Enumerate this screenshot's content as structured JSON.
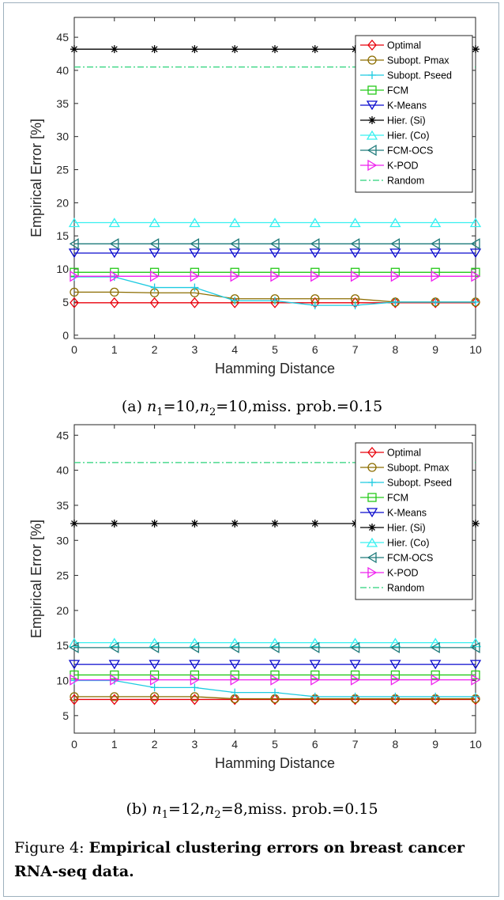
{
  "chart_data": [
    {
      "type": "line",
      "xlabel": "Hamming Distance",
      "ylabel": "Empirical Error [%]",
      "xlim": [
        0,
        10
      ],
      "ylim": [
        -0.5,
        48
      ],
      "yticks": [
        0,
        5,
        10,
        15,
        20,
        25,
        30,
        35,
        40,
        45
      ],
      "xticks": [
        0,
        1,
        2,
        3,
        4,
        5,
        6,
        7,
        8,
        9,
        10
      ],
      "legend": "top-right",
      "caption_label": "(a)",
      "caption_text": "=10,",
      "caption_text2": "=10,miss. prob.=0.15",
      "x": [
        0,
        1,
        2,
        3,
        4,
        5,
        6,
        7,
        8,
        9,
        10
      ],
      "series": [
        {
          "name": "Optimal",
          "color": "#e8000b",
          "marker": "diamond",
          "style": "solid",
          "values": [
            4.9,
            4.9,
            4.9,
            4.9,
            4.9,
            4.9,
            4.9,
            4.9,
            4.9,
            4.9,
            4.9
          ]
        },
        {
          "name": "Subopt. Pmax",
          "color": "#8c6d00",
          "marker": "circle",
          "style": "solid",
          "values": [
            6.5,
            6.5,
            6.4,
            6.4,
            5.5,
            5.5,
            5.5,
            5.5,
            5.0,
            5.0,
            5.0
          ]
        },
        {
          "name": "Subopt. Pseed",
          "color": "#1ecbe1",
          "marker": "plus",
          "style": "solid",
          "values": [
            8.8,
            8.8,
            7.2,
            7.2,
            5.2,
            5.2,
            4.5,
            4.5,
            5.0,
            5.0,
            5.0
          ]
        },
        {
          "name": "FCM",
          "color": "#25c91a",
          "marker": "square",
          "style": "solid",
          "values": [
            9.5,
            9.5,
            9.5,
            9.5,
            9.5,
            9.5,
            9.5,
            9.5,
            9.5,
            9.5,
            9.5
          ]
        },
        {
          "name": "K-Means",
          "color": "#0a0acd",
          "marker": "tridown",
          "style": "solid",
          "values": [
            12.4,
            12.4,
            12.4,
            12.4,
            12.4,
            12.4,
            12.4,
            12.4,
            12.4,
            12.4,
            12.4
          ]
        },
        {
          "name": "Hier. (Si)",
          "color": "#000000",
          "marker": "star",
          "style": "solid",
          "values": [
            43.2,
            43.2,
            43.2,
            43.2,
            43.2,
            43.2,
            43.2,
            43.2,
            43.2,
            43.2,
            43.2
          ]
        },
        {
          "name": "Hier. (Co)",
          "color": "#38f0f0",
          "marker": "triup",
          "style": "solid",
          "values": [
            17.0,
            17.0,
            17.0,
            17.0,
            17.0,
            17.0,
            17.0,
            17.0,
            17.0,
            17.0,
            17.0
          ]
        },
        {
          "name": "FCM-OCS",
          "color": "#1e7a7a",
          "marker": "trileft",
          "style": "solid",
          "values": [
            13.8,
            13.8,
            13.8,
            13.8,
            13.8,
            13.8,
            13.8,
            13.8,
            13.8,
            13.8,
            13.8
          ]
        },
        {
          "name": "K-POD",
          "color": "#ef22ef",
          "marker": "triright",
          "style": "solid",
          "values": [
            8.9,
            8.9,
            8.9,
            8.9,
            8.9,
            8.9,
            8.9,
            8.9,
            8.9,
            8.9,
            8.9
          ]
        },
        {
          "name": "Random",
          "color": "#2ad27a",
          "marker": "none",
          "style": "dashdot",
          "values": [
            40.5,
            40.5,
            40.5,
            40.5,
            40.5,
            40.5,
            40.5,
            40.5,
            40.5,
            40.5,
            40.5
          ]
        }
      ]
    },
    {
      "type": "line",
      "xlabel": "Hamming Distance",
      "ylabel": "Empirical Error [%]",
      "xlim": [
        0,
        10
      ],
      "ylim": [
        2.5,
        46.5
      ],
      "yticks": [
        5,
        10,
        15,
        20,
        25,
        30,
        35,
        40,
        45
      ],
      "xticks": [
        0,
        1,
        2,
        3,
        4,
        5,
        6,
        7,
        8,
        9,
        10
      ],
      "legend": "top-right",
      "caption_label": "(b)",
      "caption_text": "=12,",
      "caption_text2": "=8,miss. prob.=0.15",
      "x": [
        0,
        1,
        2,
        3,
        4,
        5,
        6,
        7,
        8,
        9,
        10
      ],
      "series": [
        {
          "name": "Optimal",
          "color": "#e8000b",
          "marker": "diamond",
          "style": "solid",
          "values": [
            7.3,
            7.3,
            7.3,
            7.3,
            7.3,
            7.3,
            7.3,
            7.3,
            7.3,
            7.3,
            7.3
          ]
        },
        {
          "name": "Subopt. Pmax",
          "color": "#8c6d00",
          "marker": "circle",
          "style": "solid",
          "values": [
            7.7,
            7.7,
            7.7,
            7.7,
            7.4,
            7.4,
            7.4,
            7.4,
            7.4,
            7.4,
            7.4
          ]
        },
        {
          "name": "Subopt. Pseed",
          "color": "#1ecbe1",
          "marker": "plus",
          "style": "solid",
          "values": [
            10.0,
            10.0,
            9.0,
            9.0,
            8.3,
            8.3,
            7.7,
            7.7,
            7.7,
            7.7,
            7.7
          ]
        },
        {
          "name": "FCM",
          "color": "#25c91a",
          "marker": "square",
          "style": "solid",
          "values": [
            10.8,
            10.8,
            10.8,
            10.8,
            10.8,
            10.8,
            10.8,
            10.8,
            10.8,
            10.8,
            10.8
          ]
        },
        {
          "name": "K-Means",
          "color": "#0a0acd",
          "marker": "tridown",
          "style": "solid",
          "values": [
            12.3,
            12.3,
            12.3,
            12.3,
            12.3,
            12.3,
            12.3,
            12.3,
            12.3,
            12.3,
            12.3
          ]
        },
        {
          "name": "Hier. (Si)",
          "color": "#000000",
          "marker": "star",
          "style": "solid",
          "values": [
            32.4,
            32.4,
            32.4,
            32.4,
            32.4,
            32.4,
            32.4,
            32.4,
            32.4,
            32.4,
            32.4
          ]
        },
        {
          "name": "Hier. (Co)",
          "color": "#38f0f0",
          "marker": "triup",
          "style": "solid",
          "values": [
            15.4,
            15.4,
            15.4,
            15.4,
            15.4,
            15.4,
            15.4,
            15.4,
            15.4,
            15.4,
            15.4
          ]
        },
        {
          "name": "FCM-OCS",
          "color": "#1e7a7a",
          "marker": "trileft",
          "style": "solid",
          "values": [
            14.7,
            14.7,
            14.7,
            14.7,
            14.7,
            14.7,
            14.7,
            14.7,
            14.7,
            14.7,
            14.7
          ]
        },
        {
          "name": "K-POD",
          "color": "#ef22ef",
          "marker": "triright",
          "style": "solid",
          "values": [
            10.1,
            10.1,
            10.1,
            10.1,
            10.1,
            10.1,
            10.1,
            10.1,
            10.1,
            10.1,
            10.1
          ]
        },
        {
          "name": "Random",
          "color": "#2ad27a",
          "marker": "none",
          "style": "dashdot",
          "values": [
            41.1,
            41.1,
            41.1,
            41.1,
            41.1,
            41.1,
            41.1,
            41.1,
            41.1,
            41.1,
            41.1
          ]
        }
      ]
    }
  ],
  "figure": {
    "label": "Figure 4:",
    "title": "Empirical clustering errors on breast cancer RNA-seq data."
  }
}
